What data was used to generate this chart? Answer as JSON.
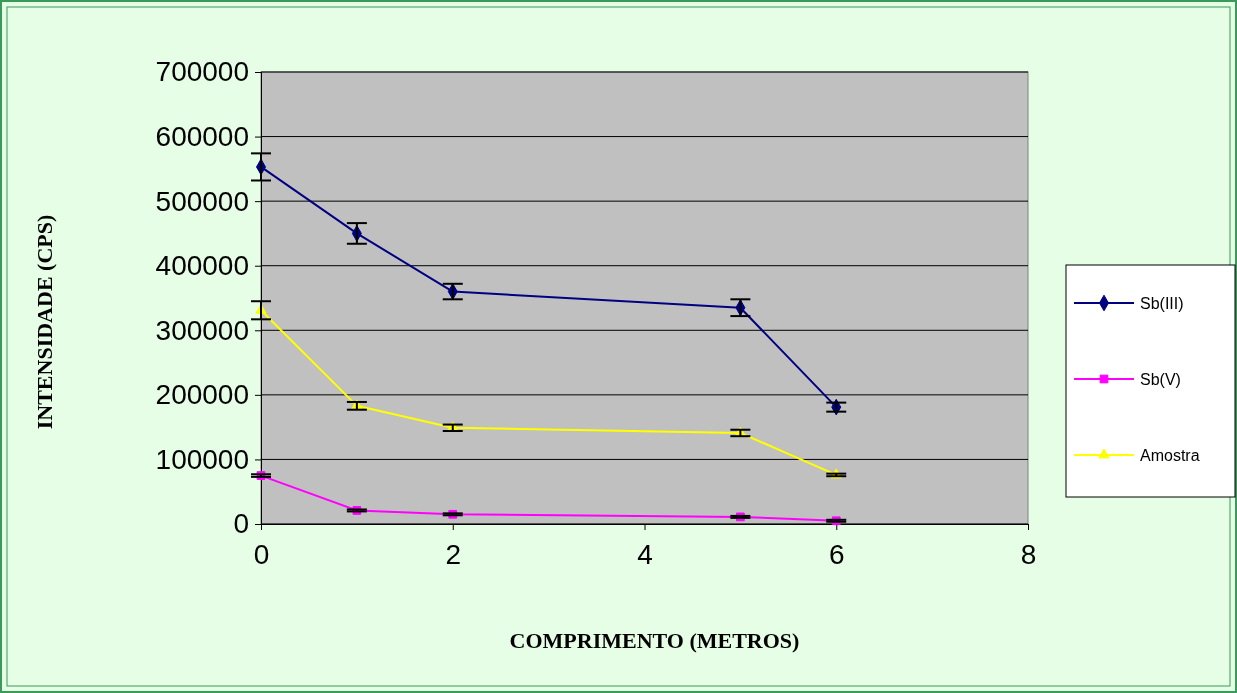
{
  "chart_data": {
    "type": "line",
    "xlabel": "COMPRIMENTO (METROS)",
    "ylabel": "INTENSIDADE (CPS)",
    "xlim": [
      0,
      8
    ],
    "xticks": [
      0,
      2,
      4,
      6,
      8
    ],
    "ylim": [
      0,
      700000
    ],
    "yticks": [
      0,
      100000,
      200000,
      300000,
      400000,
      500000,
      600000,
      700000
    ],
    "grid": "y",
    "legend": "right",
    "x": [
      0,
      1,
      2,
      5,
      6
    ],
    "series": [
      {
        "name": "Sb(III)",
        "color": "#000080",
        "marker": "diamond",
        "values": [
          553000,
          450000,
          360000,
          335000,
          181000
        ],
        "errors": [
          21000,
          16000,
          12000,
          13000,
          7000
        ]
      },
      {
        "name": "Sb(V)",
        "color": "#ff00ff",
        "marker": "square",
        "values": [
          75000,
          21000,
          15000,
          11000,
          5000
        ],
        "errors": [
          2000,
          1500,
          1500,
          1500,
          1500
        ]
      },
      {
        "name": "Amostra",
        "color": "#ffff00",
        "marker": "triangle",
        "values": [
          331000,
          183000,
          149000,
          141000,
          76000
        ],
        "errors": [
          14000,
          6000,
          5000,
          5000,
          2000
        ]
      }
    ]
  }
}
